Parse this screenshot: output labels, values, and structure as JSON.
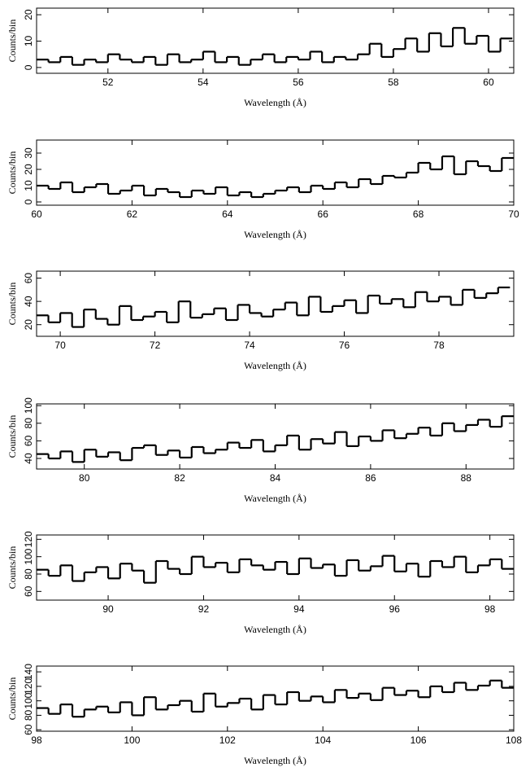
{
  "chart_data": [
    {
      "type": "line",
      "xlabel": "Wavelength (Å)",
      "ylabel": "Counts/bin",
      "color": "#000000",
      "xlim": [
        50.5,
        60.53
      ],
      "ylim": [
        -2.2,
        22.5
      ],
      "xticks": [
        52,
        54,
        56,
        58,
        60
      ],
      "yticks": [
        0,
        10,
        20
      ],
      "x": [
        50.5,
        50.75,
        51,
        51.25,
        51.5,
        51.75,
        52,
        52.25,
        52.5,
        52.75,
        53,
        53.25,
        53.5,
        53.75,
        54,
        54.25,
        54.5,
        54.75,
        55,
        55.25,
        55.5,
        55.75,
        56,
        56.25,
        56.5,
        56.75,
        57,
        57.25,
        57.5,
        57.75,
        58,
        58.25,
        58.5,
        58.75,
        59,
        59.25,
        59.5,
        59.75,
        60,
        60.25
      ],
      "values": [
        3,
        2,
        4,
        1,
        3,
        2,
        5,
        3,
        2,
        4,
        1,
        5,
        2,
        3,
        6,
        2,
        4,
        1,
        3,
        5,
        2,
        4,
        3,
        6,
        2,
        4,
        3,
        5,
        9,
        4,
        7,
        11,
        6,
        13,
        8,
        15,
        9,
        12,
        6,
        11
      ]
    },
    {
      "type": "line",
      "xlabel": "Wavelength (Å)",
      "ylabel": "Counts/bin",
      "color": "#000000",
      "xlim": [
        60,
        70
      ],
      "ylim": [
        -2,
        38
      ],
      "xticks": [
        60,
        62,
        64,
        66,
        68,
        70
      ],
      "yticks": [
        0,
        10,
        20,
        30
      ],
      "x": [
        60,
        60.25,
        60.5,
        60.75,
        61,
        61.25,
        61.5,
        61.75,
        62,
        62.25,
        62.5,
        62.75,
        63,
        63.25,
        63.5,
        63.75,
        64,
        64.25,
        64.5,
        64.75,
        65,
        65.25,
        65.5,
        65.75,
        66,
        66.25,
        66.5,
        66.75,
        67,
        67.25,
        67.5,
        67.75,
        68,
        68.25,
        68.5,
        68.75,
        69,
        69.25,
        69.5,
        69.75
      ],
      "values": [
        10,
        8,
        12,
        6,
        9,
        11,
        5,
        7,
        10,
        4,
        8,
        6,
        3,
        7,
        5,
        9,
        4,
        6,
        3,
        5,
        7,
        9,
        6,
        10,
        8,
        12,
        9,
        14,
        11,
        16,
        15,
        18,
        24,
        20,
        28,
        17,
        25,
        22,
        19,
        27
      ]
    },
    {
      "type": "line",
      "xlabel": "Wavelength (Å)",
      "ylabel": "Counts/bin",
      "color": "#000000",
      "xlim": [
        69.5,
        79.58
      ],
      "ylim": [
        10,
        66
      ],
      "xticks": [
        70,
        72,
        74,
        76,
        78
      ],
      "yticks": [
        20,
        40,
        60
      ],
      "x": [
        69.5,
        69.75,
        70,
        70.25,
        70.5,
        70.75,
        71,
        71.25,
        71.5,
        71.75,
        72,
        72.25,
        72.5,
        72.75,
        73,
        73.25,
        73.5,
        73.75,
        74,
        74.25,
        74.5,
        74.75,
        75,
        75.25,
        75.5,
        75.75,
        76,
        76.25,
        76.5,
        76.75,
        77,
        77.25,
        77.5,
        77.75,
        78,
        78.25,
        78.5,
        78.75,
        79,
        79.25
      ],
      "values": [
        28,
        22,
        30,
        18,
        33,
        25,
        20,
        36,
        24,
        27,
        31,
        22,
        40,
        26,
        29,
        34,
        24,
        37,
        30,
        27,
        33,
        39,
        28,
        44,
        31,
        36,
        41,
        30,
        45,
        38,
        42,
        35,
        48,
        40,
        44,
        37,
        50,
        43,
        47,
        52
      ]
    },
    {
      "type": "line",
      "xlabel": "Wavelength (Å)",
      "ylabel": "Counts/bin",
      "color": "#000000",
      "xlim": [
        79,
        89
      ],
      "ylim": [
        28,
        102
      ],
      "xticks": [
        80,
        82,
        84,
        86,
        88
      ],
      "yticks": [
        40,
        60,
        80,
        100
      ],
      "x": [
        79,
        79.25,
        79.5,
        79.75,
        80,
        80.25,
        80.5,
        80.75,
        81,
        81.25,
        81.5,
        81.75,
        82,
        82.25,
        82.5,
        82.75,
        83,
        83.25,
        83.5,
        83.75,
        84,
        84.25,
        84.5,
        84.75,
        85,
        85.25,
        85.5,
        85.75,
        86,
        86.25,
        86.5,
        86.75,
        87,
        87.25,
        87.5,
        87.75,
        88,
        88.25,
        88.5,
        88.75
      ],
      "values": [
        45,
        40,
        48,
        36,
        50,
        42,
        47,
        38,
        52,
        55,
        44,
        49,
        41,
        53,
        46,
        50,
        58,
        52,
        61,
        48,
        55,
        66,
        50,
        62,
        57,
        70,
        54,
        65,
        60,
        72,
        63,
        68,
        75,
        66,
        80,
        71,
        78,
        84,
        76,
        88
      ]
    },
    {
      "type": "line",
      "xlabel": "Wavelength (Å)",
      "ylabel": "Counts/bin",
      "color": "#000000",
      "xlim": [
        88.5,
        98.5
      ],
      "ylim": [
        50,
        125
      ],
      "xticks": [
        90,
        92,
        94,
        96,
        98
      ],
      "yticks": [
        60,
        80,
        100,
        120
      ],
      "x": [
        88.5,
        88.75,
        89,
        89.25,
        89.5,
        89.75,
        90,
        90.25,
        90.5,
        90.75,
        91,
        91.25,
        91.5,
        91.75,
        92,
        92.25,
        92.5,
        92.75,
        93,
        93.25,
        93.5,
        93.75,
        94,
        94.25,
        94.5,
        94.75,
        95,
        95.25,
        95.5,
        95.75,
        96,
        96.25,
        96.5,
        96.75,
        97,
        97.25,
        97.5,
        97.75,
        98,
        98.25
      ],
      "values": [
        85,
        78,
        90,
        72,
        82,
        88,
        75,
        92,
        84,
        70,
        95,
        86,
        80,
        100,
        88,
        93,
        82,
        97,
        90,
        85,
        94,
        80,
        98,
        87,
        91,
        78,
        96,
        84,
        89,
        101,
        83,
        92,
        77,
        95,
        88,
        100,
        82,
        90,
        97,
        86
      ]
    },
    {
      "type": "line",
      "xlabel": "Wavelength (Å)",
      "ylabel": "Counts/bin",
      "color": "#000000",
      "xlim": [
        98,
        108
      ],
      "ylim": [
        58,
        148
      ],
      "xticks": [
        98,
        100,
        102,
        104,
        106,
        108
      ],
      "yticks": [
        60,
        80,
        100,
        120,
        140
      ],
      "x": [
        98,
        98.25,
        98.5,
        98.75,
        99,
        99.25,
        99.5,
        99.75,
        100,
        100.25,
        100.5,
        100.75,
        101,
        101.25,
        101.5,
        101.75,
        102,
        102.25,
        102.5,
        102.75,
        103,
        103.25,
        103.5,
        103.75,
        104,
        104.25,
        104.5,
        104.75,
        105,
        105.25,
        105.5,
        105.75,
        106,
        106.25,
        106.5,
        106.75,
        107,
        107.25,
        107.5,
        107.75
      ],
      "values": [
        90,
        82,
        95,
        78,
        88,
        92,
        84,
        98,
        80,
        105,
        88,
        94,
        100,
        85,
        110,
        92,
        97,
        103,
        88,
        108,
        95,
        112,
        100,
        106,
        98,
        115,
        104,
        110,
        101,
        118,
        108,
        114,
        105,
        120,
        112,
        125,
        115,
        121,
        128,
        118
      ]
    }
  ]
}
